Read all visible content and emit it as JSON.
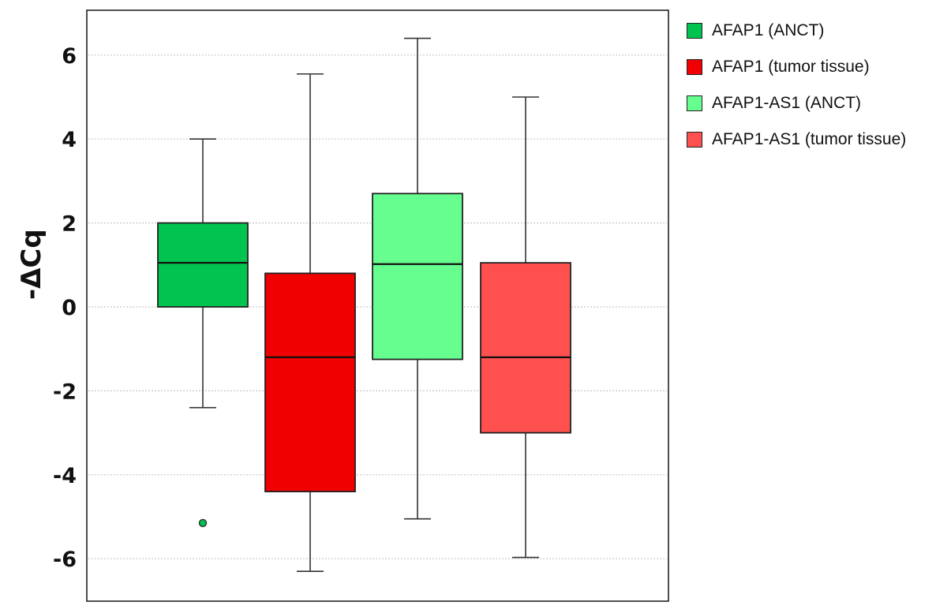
{
  "chart_data": {
    "type": "box",
    "title": "",
    "xlabel": "",
    "ylabel": "-ΔCq",
    "ylim": [
      -7,
      7
    ],
    "yticks": [
      6,
      4,
      2,
      0,
      -2,
      -4,
      -6
    ],
    "grid": "horizontal dashed",
    "legend_position": "right",
    "series": [
      {
        "name": "AFAP1 (ANCT)",
        "color": "#00c44f",
        "whisker_low": -2.4,
        "q1": 0.0,
        "median": 1.05,
        "q3": 2.0,
        "whisker_high": 4.0,
        "outliers": [
          -5.15
        ]
      },
      {
        "name": "AFAP1 (tumor tissue)",
        "color": "#f00000",
        "whisker_low": -6.3,
        "q1": -4.4,
        "median": -1.2,
        "q3": 0.8,
        "whisker_high": 5.55,
        "outliers": []
      },
      {
        "name": "AFAP1-AS1 (ANCT)",
        "color": "#66ff8f",
        "whisker_low": -5.05,
        "q1": -1.25,
        "median": 1.02,
        "q3": 2.7,
        "whisker_high": 6.4,
        "outliers": []
      },
      {
        "name": "AFAP1-AS1 (tumor tissue)",
        "color": "#ff5050",
        "whisker_low": -5.97,
        "q1": -3.0,
        "median": -1.2,
        "q3": 1.05,
        "whisker_high": 5.0,
        "outliers": []
      }
    ]
  }
}
